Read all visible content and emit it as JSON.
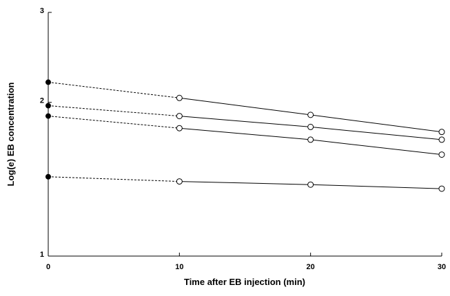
{
  "chart_data": {
    "type": "line",
    "x_label": "Time after EB injection (min)",
    "y_label": "Log(e) EB concentration",
    "x": [
      0,
      10,
      20,
      30
    ],
    "series": [
      {
        "color": "#000000",
        "values": [
          2.19,
          2.04,
          1.89,
          1.75
        ]
      },
      {
        "color": "#000000",
        "values": [
          1.97,
          1.88,
          1.79,
          1.69
        ]
      },
      {
        "color": "#000000",
        "values": [
          1.88,
          1.78,
          1.69,
          1.58
        ]
      },
      {
        "color": "#000000",
        "values": [
          1.43,
          1.4,
          1.38,
          1.355
        ]
      }
    ],
    "xlim": [
      0,
      30
    ],
    "xticks": [
      0,
      10,
      20,
      30
    ],
    "ylim": [
      1,
      3
    ],
    "yticks": [
      1,
      2,
      3
    ],
    "y_scale": "log",
    "grid": false
  }
}
